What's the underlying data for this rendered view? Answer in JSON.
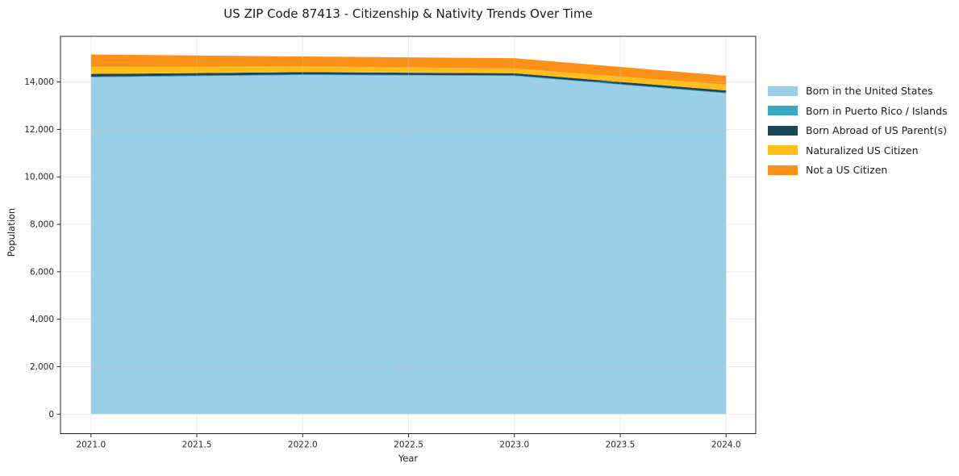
{
  "page": {
    "background": "#ffffff"
  },
  "chart_data": {
    "type": "area",
    "stacked": true,
    "title": "US ZIP Code 87413 - Citizenship & Nativity Trends Over Time",
    "xlabel": "Year",
    "ylabel": "Population",
    "x": [
      2021,
      2022,
      2023,
      2024
    ],
    "series": [
      {
        "name": "Born in the United States",
        "color": "#99CFE9",
        "values": [
          14193,
          14290,
          14250,
          13517
        ]
      },
      {
        "name": "Born in Puerto Rico / Islands",
        "color": "#37A8C3",
        "values": [
          30,
          30,
          28,
          30
        ]
      },
      {
        "name": "Born Abroad of US Parent(s)",
        "color": "#1B455A",
        "values": [
          115,
          95,
          90,
          95
        ]
      },
      {
        "name": "Naturalized US Citizen",
        "color": "#FFBE1C",
        "values": [
          310,
          240,
          200,
          250
        ]
      },
      {
        "name": "Not a US Citizen",
        "color": "#FB9119",
        "values": [
          510,
          420,
          435,
          370
        ]
      }
    ],
    "totals": [
      15158,
      15075,
      15003,
      14262
    ],
    "xlim": [
      2020.856,
      2024.14
    ],
    "ylim": [
      -823,
      15925
    ],
    "xticks": [
      2021.0,
      2021.5,
      2022.0,
      2022.5,
      2023.0,
      2023.5,
      2024.0
    ],
    "xtick_labels": [
      "2021.0",
      "2021.5",
      "2022.0",
      "2022.5",
      "2023.0",
      "2023.5",
      "2024.0"
    ],
    "yticks": [
      0,
      2000,
      4000,
      6000,
      8000,
      10000,
      12000,
      14000
    ],
    "ytick_labels": [
      "0",
      "2,000",
      "4,000",
      "6,000",
      "8,000",
      "10,000",
      "12,000",
      "14,000"
    ],
    "grid": true,
    "legend_position": "right",
    "colors": {
      "spine": "#262626",
      "tick_label": "#262626",
      "grid": "#c8c8c8"
    }
  }
}
